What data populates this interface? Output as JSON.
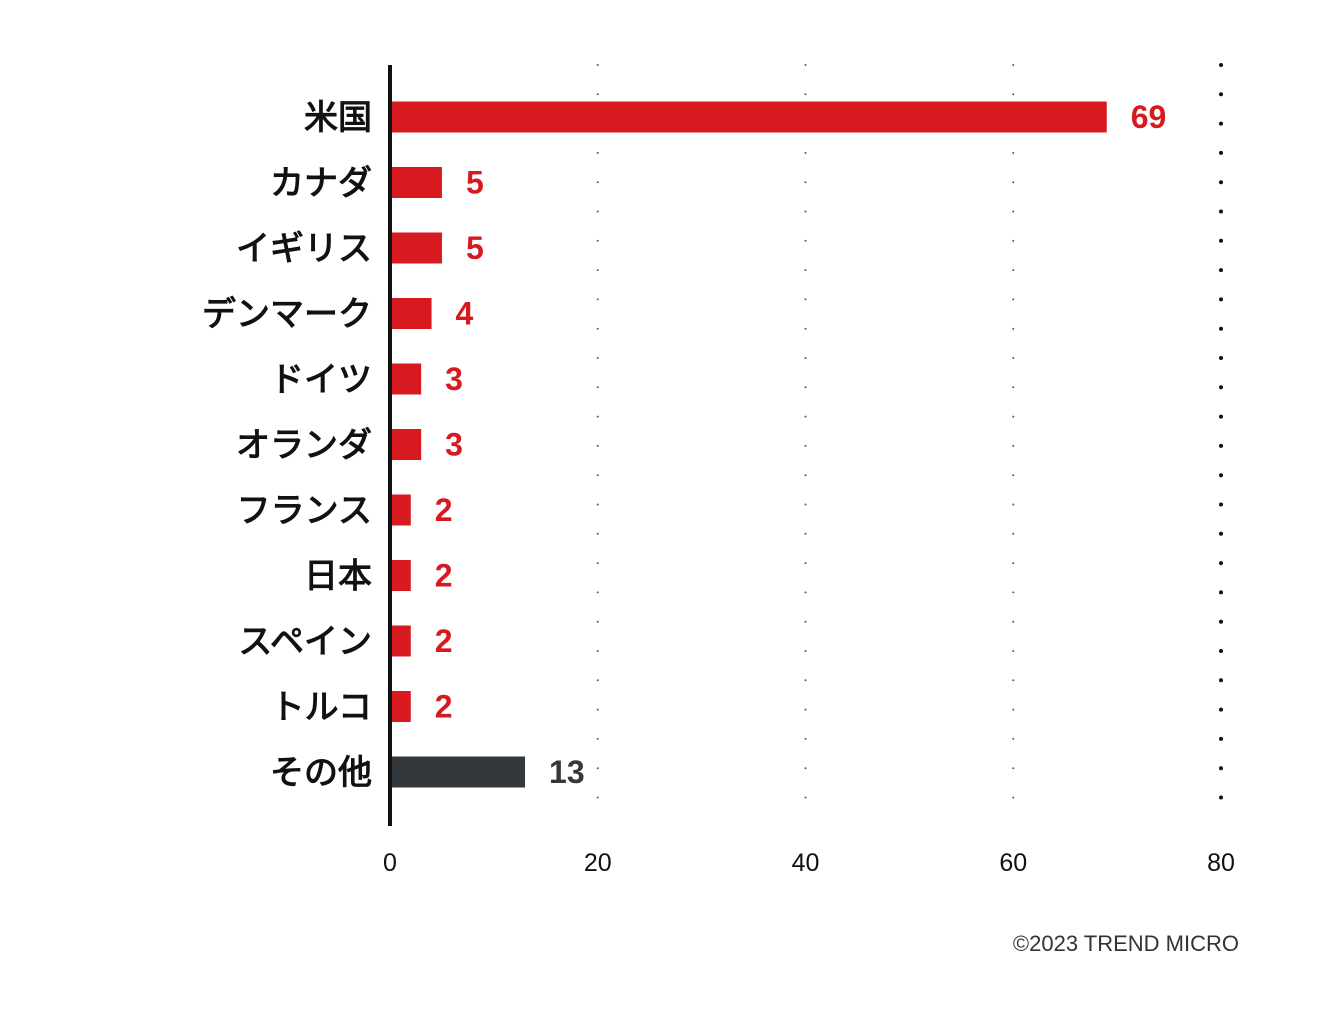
{
  "chart_data": {
    "type": "bar",
    "orientation": "horizontal",
    "title": "",
    "xlabel": "",
    "ylabel": "",
    "categories": [
      "米国",
      "カナダ",
      "イギリス",
      "デンマーク",
      "ドイツ",
      "オランダ",
      "フランス",
      "日本",
      "スペイン",
      "トルコ",
      "その他"
    ],
    "values": [
      69,
      5,
      5,
      4,
      3,
      3,
      2,
      2,
      2,
      2,
      13
    ],
    "bar_colors": [
      "#d71920",
      "#d71920",
      "#d71920",
      "#d71920",
      "#d71920",
      "#d71920",
      "#d71920",
      "#d71920",
      "#d71920",
      "#d71920",
      "#33383c"
    ],
    "xlim": [
      0,
      80
    ],
    "xticks": [
      "0",
      "20",
      "40",
      "60",
      "80"
    ],
    "grid": "vertical dotted",
    "legend": "none"
  },
  "footer": {
    "copyright": "©2023 TREND MICRO"
  }
}
